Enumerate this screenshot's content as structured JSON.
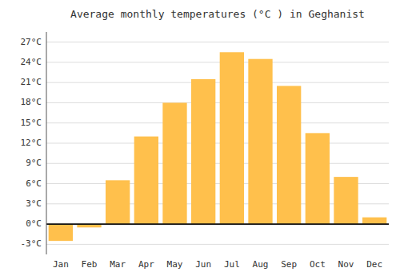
{
  "chart_data": {
    "type": "bar",
    "title": "Average monthly temperatures (°C ) in Geghanist",
    "categories": [
      "Jan",
      "Feb",
      "Mar",
      "Apr",
      "May",
      "Jun",
      "Jul",
      "Aug",
      "Sep",
      "Oct",
      "Nov",
      "Dec"
    ],
    "values": [
      -2.5,
      -0.5,
      6.5,
      13.0,
      18.0,
      21.5,
      25.5,
      24.5,
      20.5,
      13.5,
      7.0,
      1.0
    ],
    "color": "#FFC04C",
    "ylim": [
      -4.5,
      28.5
    ],
    "yticks": [
      {
        "value": -3,
        "label": "-3°C"
      },
      {
        "value": 0,
        "label": "0°C"
      },
      {
        "value": 3,
        "label": "3°C"
      },
      {
        "value": 6,
        "label": "6°C"
      },
      {
        "value": 9,
        "label": "9°C"
      },
      {
        "value": 12,
        "label": "12°C"
      },
      {
        "value": 15,
        "label": "15°C"
      },
      {
        "value": 18,
        "label": "18°C"
      },
      {
        "value": 21,
        "label": "21°C"
      },
      {
        "value": 24,
        "label": "24°C"
      },
      {
        "value": 27,
        "label": "27°C"
      }
    ],
    "grid": true
  }
}
